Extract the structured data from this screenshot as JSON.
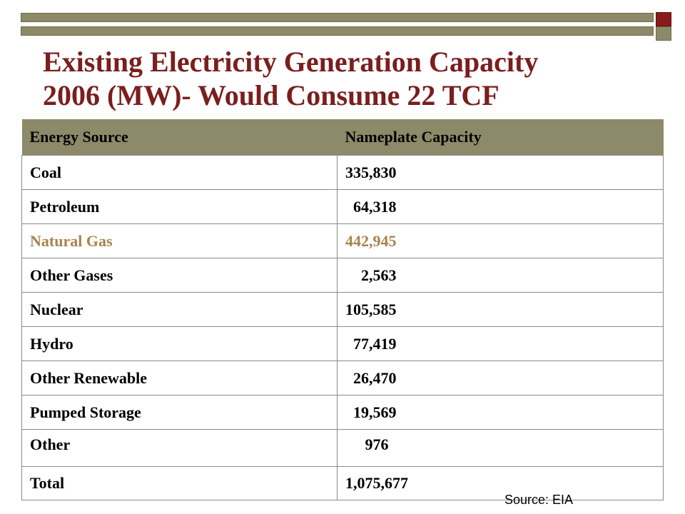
{
  "title": {
    "line1": "Existing Electricity Generation Capacity",
    "line2": "2006 (MW)- Would Consume 22 TCF"
  },
  "table": {
    "headers": [
      "Energy Source",
      "Nameplate Capacity"
    ],
    "rows": [
      {
        "source": "Coal",
        "capacity": "335,830"
      },
      {
        "source": "Petroleum",
        "capacity": "  64,318"
      },
      {
        "source": "Natural Gas",
        "capacity": "442,945"
      },
      {
        "source": "Other Gases",
        "capacity": "    2,563"
      },
      {
        "source": "Nuclear",
        "capacity": "105,585"
      },
      {
        "source": "Hydro",
        "capacity": "  77,419"
      },
      {
        "source": "Other Renewable",
        "capacity": "  26,470"
      },
      {
        "source": "Pumped Storage",
        "capacity": "  19,569"
      },
      {
        "source": "Other",
        "capacity": "     976"
      },
      {
        "source": "Total",
        "capacity": "1,075,677"
      }
    ]
  },
  "source_note": "Source: EIA",
  "colors": {
    "title": "#7a1e1e",
    "header_bg": "#8d8a69",
    "highlight_text": "#a8824e",
    "accent_square": "#8b1a1a"
  }
}
